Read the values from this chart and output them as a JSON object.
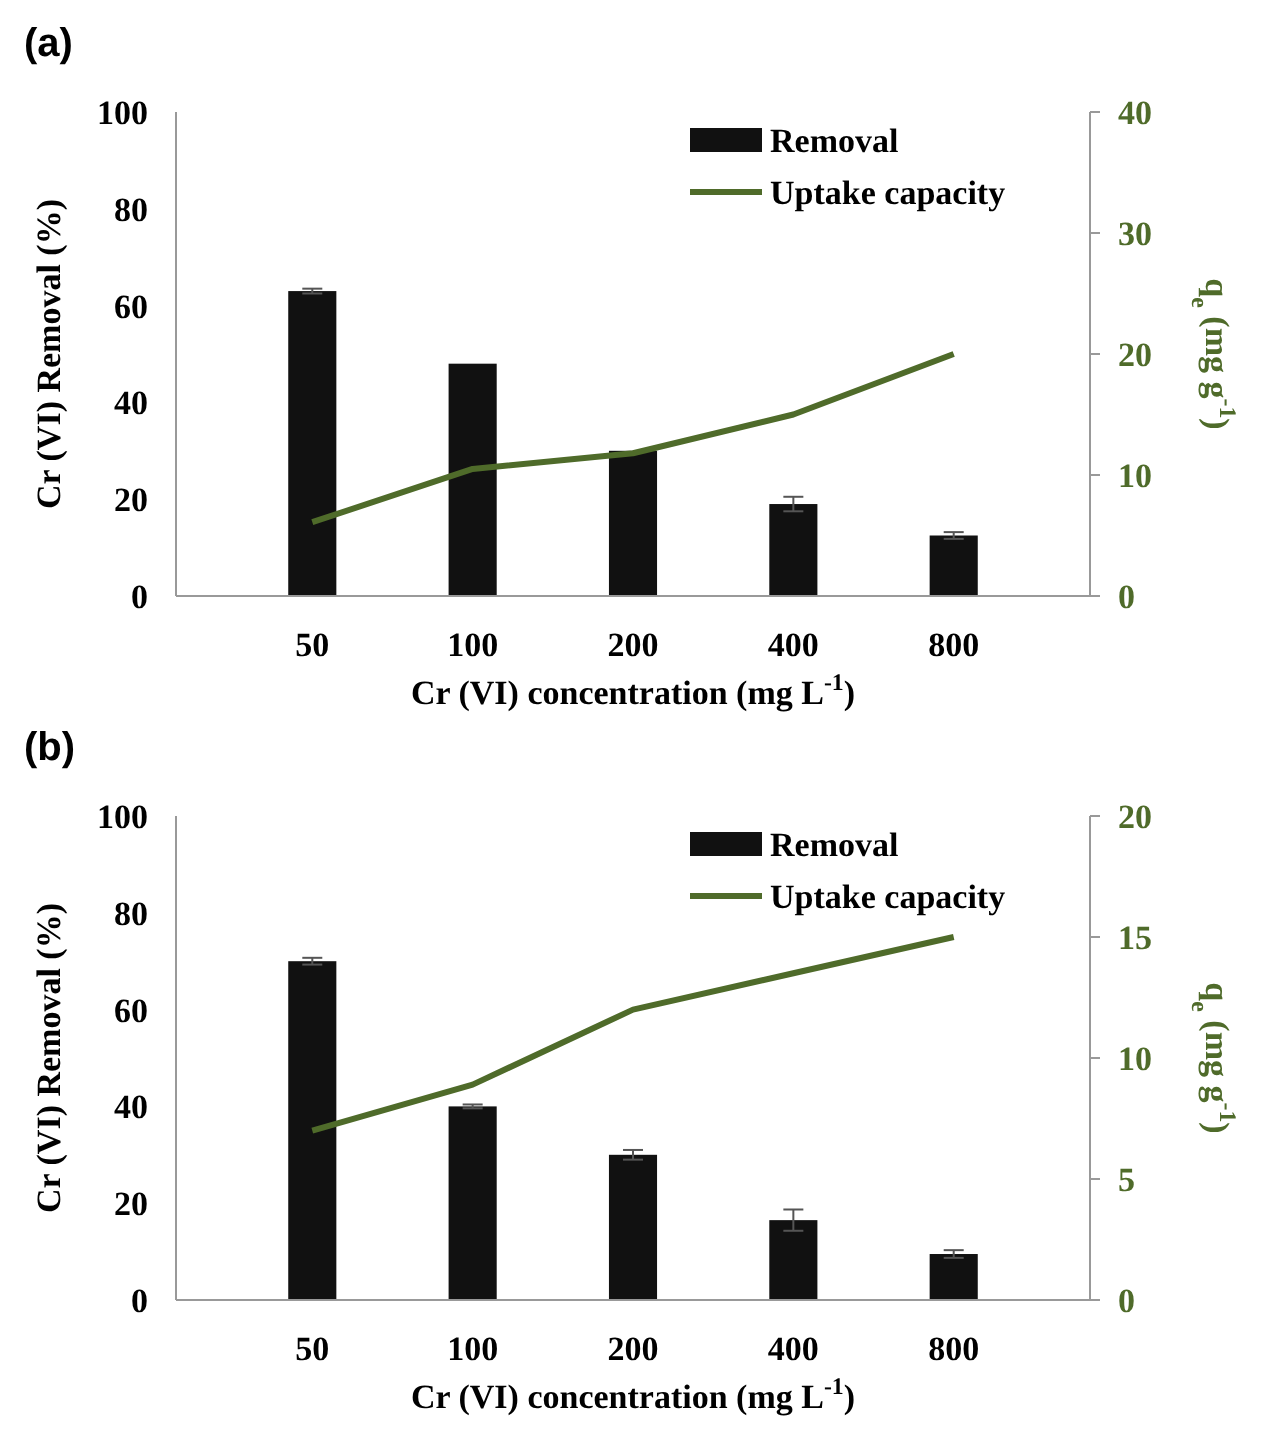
{
  "chart_data": [
    {
      "type": "bar",
      "title": "(a)",
      "xlabel": "Cr (VI) concentration (mg L$^{-1}$)",
      "ylabel": "Cr (VI) Removal (%)",
      "y2label": "q$_{e}$ (mg g$^{-1}$)",
      "categories": [
        "50",
        "100",
        "200",
        "400",
        "800"
      ],
      "ylim": [
        0,
        100
      ],
      "yticks": [
        0,
        20,
        40,
        60,
        80,
        100
      ],
      "y2lim": [
        0,
        40
      ],
      "y2ticks": [
        0,
        10,
        20,
        30,
        40
      ],
      "legend": "top right",
      "grid": false,
      "series": [
        {
          "name": "Removal",
          "color": "#111111",
          "values": [
            63,
            48,
            30,
            19,
            12.5
          ],
          "errors": [
            0.5,
            null,
            null,
            1.5,
            0.7
          ]
        },
        {
          "name": "Uptake capacity",
          "type": "line",
          "axis": "y2",
          "color": "#4f6b2a",
          "values": [
            6.1,
            10.5,
            11.8,
            15,
            20
          ]
        }
      ]
    },
    {
      "type": "bar",
      "title": "(b)",
      "xlabel": "Cr (VI) concentration (mg L$^{-1}$)",
      "ylabel": "Cr (VI) Removal (%)",
      "y2label": "q$_{e}$ (mg g$^{-1}$)",
      "categories": [
        "50",
        "100",
        "200",
        "400",
        "800"
      ],
      "ylim": [
        0,
        100
      ],
      "yticks": [
        0,
        20,
        40,
        60,
        80,
        100
      ],
      "y2lim": [
        0,
        20
      ],
      "y2ticks": [
        0,
        5,
        10,
        15,
        20
      ],
      "legend": "top right",
      "grid": false,
      "series": [
        {
          "name": "Removal",
          "color": "#111111",
          "values": [
            70,
            40,
            30,
            16.5,
            9.5
          ],
          "errors": [
            0.7,
            0.4,
            1,
            2.2,
            0.8
          ]
        },
        {
          "name": "Uptake capacity",
          "type": "line",
          "axis": "y2",
          "color": "#4f6b2a",
          "values": [
            7,
            8.9,
            12,
            13.5,
            15
          ]
        }
      ]
    }
  ]
}
